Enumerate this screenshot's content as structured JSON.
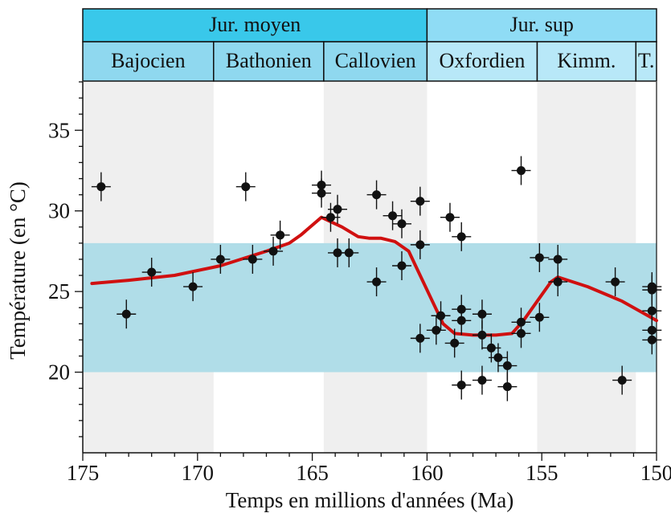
{
  "chart_data": {
    "type": "scatter",
    "xlabel": "Temps en millions d'années (Ma)",
    "ylabel": "Température (en °C)",
    "xlim": [
      175,
      150
    ],
    "ylim": [
      15,
      38
    ],
    "x_ticks": [
      "175",
      "170",
      "165",
      "160",
      "155",
      "150"
    ],
    "y_ticks": [
      "20",
      "25",
      "30",
      "35"
    ],
    "band": {
      "y_min": 20,
      "y_max": 28,
      "color": "#b0dde8"
    },
    "colors": {
      "points": "#111111",
      "trend": "#d01010",
      "epoch_moyen": "#39c8ea",
      "epoch_sup": "#8fdcf5",
      "stage_moyen": "#8fd8ef",
      "stage_sup": "#b8e8f8",
      "shade": "#efefef"
    },
    "epochs": [
      {
        "name": "Jur. moyen",
        "start": 175,
        "end": 160
      },
      {
        "name": "Jur. sup",
        "start": 160,
        "end": 150
      }
    ],
    "stages": [
      {
        "name": "Bajocien",
        "start": 175,
        "end": 169.3,
        "shaded": true
      },
      {
        "name": "Bathonien",
        "start": 169.3,
        "end": 164.5,
        "shaded": false
      },
      {
        "name": "Callovien",
        "start": 164.5,
        "end": 160,
        "shaded": true
      },
      {
        "name": "Oxfordien",
        "start": 160,
        "end": 155.2,
        "shaded": false
      },
      {
        "name": "Kimm.",
        "start": 155.2,
        "end": 150.9,
        "shaded": true
      },
      {
        "name": "T.",
        "start": 150.9,
        "end": 150,
        "shaded": false
      }
    ],
    "series": [
      {
        "type": "scatter",
        "points": [
          {
            "x": 174.2,
            "y": 31.5
          },
          {
            "x": 173.1,
            "y": 23.6
          },
          {
            "x": 172.0,
            "y": 26.2
          },
          {
            "x": 170.2,
            "y": 25.3
          },
          {
            "x": 169.0,
            "y": 27.0
          },
          {
            "x": 167.9,
            "y": 31.5
          },
          {
            "x": 167.6,
            "y": 27.0
          },
          {
            "x": 166.7,
            "y": 27.5
          },
          {
            "x": 166.4,
            "y": 28.5
          },
          {
            "x": 164.6,
            "y": 31.6
          },
          {
            "x": 164.6,
            "y": 31.1
          },
          {
            "x": 164.2,
            "y": 29.6
          },
          {
            "x": 163.9,
            "y": 30.1
          },
          {
            "x": 163.9,
            "y": 27.4
          },
          {
            "x": 163.4,
            "y": 27.4
          },
          {
            "x": 162.2,
            "y": 31.0
          },
          {
            "x": 162.2,
            "y": 25.6
          },
          {
            "x": 161.5,
            "y": 29.7
          },
          {
            "x": 161.1,
            "y": 29.2
          },
          {
            "x": 161.1,
            "y": 26.6
          },
          {
            "x": 160.3,
            "y": 30.6
          },
          {
            "x": 160.3,
            "y": 27.9
          },
          {
            "x": 160.3,
            "y": 22.1
          },
          {
            "x": 159.6,
            "y": 22.6
          },
          {
            "x": 159.4,
            "y": 23.5
          },
          {
            "x": 159.0,
            "y": 29.6
          },
          {
            "x": 158.8,
            "y": 21.8
          },
          {
            "x": 158.5,
            "y": 28.4
          },
          {
            "x": 158.5,
            "y": 23.9
          },
          {
            "x": 158.5,
            "y": 23.2
          },
          {
            "x": 158.5,
            "y": 19.2
          },
          {
            "x": 157.6,
            "y": 23.6
          },
          {
            "x": 157.6,
            "y": 22.3
          },
          {
            "x": 157.6,
            "y": 19.5
          },
          {
            "x": 157.2,
            "y": 21.5
          },
          {
            "x": 156.9,
            "y": 20.9
          },
          {
            "x": 156.5,
            "y": 20.4
          },
          {
            "x": 156.5,
            "y": 19.1
          },
          {
            "x": 155.9,
            "y": 32.5
          },
          {
            "x": 155.9,
            "y": 23.1
          },
          {
            "x": 155.9,
            "y": 22.4
          },
          {
            "x": 155.1,
            "y": 27.1
          },
          {
            "x": 155.1,
            "y": 23.4
          },
          {
            "x": 154.3,
            "y": 27.0
          },
          {
            "x": 154.3,
            "y": 25.6
          },
          {
            "x": 151.8,
            "y": 25.6
          },
          {
            "x": 151.5,
            "y": 19.5
          },
          {
            "x": 150.2,
            "y": 25.3
          },
          {
            "x": 150.2,
            "y": 25.1
          },
          {
            "x": 150.2,
            "y": 23.8
          },
          {
            "x": 150.2,
            "y": 22.6
          },
          {
            "x": 150.2,
            "y": 22.0
          }
        ]
      },
      {
        "type": "line",
        "points": [
          {
            "x": 174.6,
            "y": 25.5
          },
          {
            "x": 173.0,
            "y": 25.7
          },
          {
            "x": 171.0,
            "y": 26.0
          },
          {
            "x": 169.0,
            "y": 26.6
          },
          {
            "x": 167.0,
            "y": 27.5
          },
          {
            "x": 166.0,
            "y": 28.0
          },
          {
            "x": 165.5,
            "y": 28.5
          },
          {
            "x": 164.6,
            "y": 29.6
          },
          {
            "x": 163.7,
            "y": 29.0
          },
          {
            "x": 163.0,
            "y": 28.4
          },
          {
            "x": 162.5,
            "y": 28.3
          },
          {
            "x": 162.0,
            "y": 28.3
          },
          {
            "x": 161.4,
            "y": 28.1
          },
          {
            "x": 160.8,
            "y": 27.5
          },
          {
            "x": 160.3,
            "y": 26.0
          },
          {
            "x": 159.8,
            "y": 24.5
          },
          {
            "x": 159.3,
            "y": 23.0
          },
          {
            "x": 158.8,
            "y": 22.4
          },
          {
            "x": 158.0,
            "y": 22.3
          },
          {
            "x": 157.0,
            "y": 22.3
          },
          {
            "x": 156.3,
            "y": 22.4
          },
          {
            "x": 155.8,
            "y": 23.2
          },
          {
            "x": 155.2,
            "y": 24.4
          },
          {
            "x": 154.6,
            "y": 25.6
          },
          {
            "x": 154.3,
            "y": 25.9
          },
          {
            "x": 153.0,
            "y": 25.3
          },
          {
            "x": 151.5,
            "y": 24.4
          },
          {
            "x": 150.0,
            "y": 23.2
          }
        ]
      }
    ]
  }
}
